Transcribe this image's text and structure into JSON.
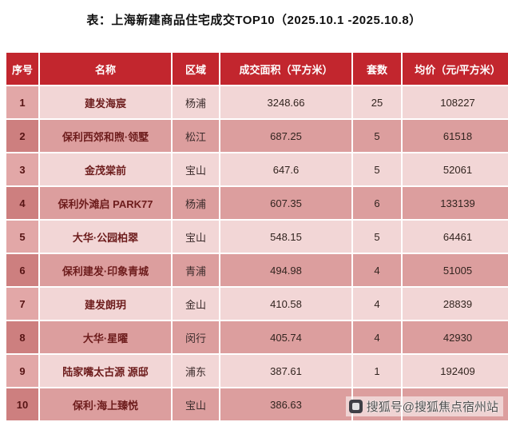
{
  "chart_data": {
    "type": "table",
    "title": "表：上海新建商品住宅成交TOP10（2025.10.1 -2025.10.8）",
    "columns": [
      "序号",
      "名称",
      "区域",
      "成交面积（平方米）",
      "套数",
      "均价（元/平方米）"
    ],
    "rows": [
      [
        "1",
        "建发海宸",
        "杨浦",
        "3248.66",
        "25",
        "108227"
      ],
      [
        "2",
        "保利西郊和煦·领墅",
        "松江",
        "687.25",
        "5",
        "61518"
      ],
      [
        "3",
        "金茂棠前",
        "宝山",
        "647.6",
        "5",
        "52061"
      ],
      [
        "4",
        "保利外滩启 PARK77",
        "杨浦",
        "607.35",
        "6",
        "133139"
      ],
      [
        "5",
        "大华·公园柏翠",
        "宝山",
        "548.15",
        "5",
        "64461"
      ],
      [
        "6",
        "保利建发·印象青城",
        "青浦",
        "494.98",
        "4",
        "51005"
      ],
      [
        "7",
        "建发朗玥",
        "金山",
        "410.58",
        "4",
        "28839"
      ],
      [
        "8",
        "大华·星曜",
        "闵行",
        "405.74",
        "4",
        "42930"
      ],
      [
        "9",
        "陆家嘴太古源 源邸",
        "浦东",
        "387.61",
        "1",
        "192409"
      ],
      [
        "10",
        "保利·海上臻悦",
        "宝山",
        "386.63",
        "",
        ""
      ]
    ]
  },
  "watermark": {
    "label": "搜狐号@搜狐焦点宿州站"
  },
  "colors": {
    "header_bg": "#c2262e",
    "header_text": "#ffffff",
    "row_light": "#f2d6d6",
    "row_dark": "#dc9e9e",
    "serial_light": "#e2a7a7",
    "serial_dark": "#cd7f7f",
    "name_text": "#6d1c1c"
  }
}
